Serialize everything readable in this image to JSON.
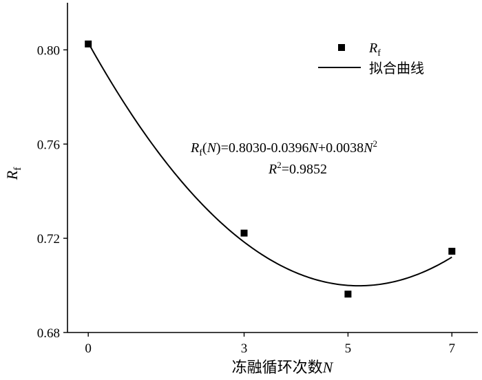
{
  "chart_data": {
    "type": "scatter",
    "x_ticks": [
      "0",
      "3",
      "5",
      "7"
    ],
    "y_ticks": [
      "0.68",
      "0.72",
      "0.76",
      "0.80"
    ],
    "ylim": [
      0.68,
      0.82
    ],
    "xlim": [
      -0.4,
      7.5
    ],
    "xlabel": "冻融循环次数",
    "xlabel_var": "N",
    "ylabel_main": "R",
    "ylabel_sub": "f",
    "series": [
      {
        "name_main": "R",
        "name_sub": "f",
        "kind": "points",
        "x": [
          0,
          3,
          5,
          7
        ],
        "y": [
          0.8025,
          0.7222,
          0.6963,
          0.7145
        ]
      },
      {
        "name": "拟合曲线",
        "kind": "fit",
        "coefficients": [
          0.803,
          -0.0396,
          0.0038
        ]
      }
    ],
    "legend_position": "top-right",
    "annotation": {
      "equation": {
        "lhs_main": "R",
        "lhs_sub": "f",
        "arg_open": "(",
        "arg_var": "N",
        "arg_close": ")",
        "rhs_part1": "=0.8030-0.0396",
        "var1": "N",
        "rhs_part2": "+0.0038",
        "var2": "N",
        "exponent": "2"
      },
      "r2": {
        "symbol": "R",
        "exponent": "2",
        "value": "=0.9852"
      }
    }
  }
}
